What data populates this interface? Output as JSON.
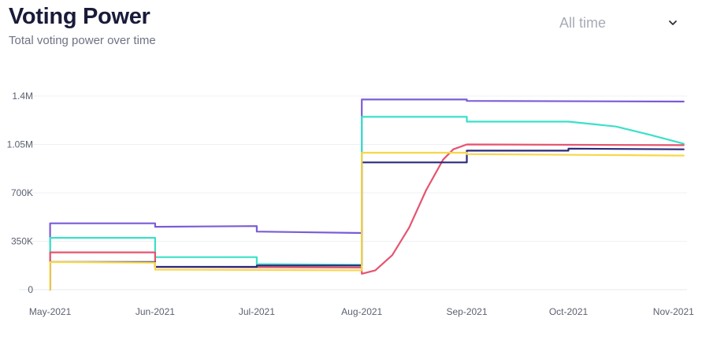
{
  "header": {
    "title": "Voting Power",
    "subtitle": "Total voting power over time"
  },
  "range_selector": {
    "selected": "All time",
    "icon": "chevron-down-icon"
  },
  "chart_data": {
    "type": "line",
    "title": "Voting Power",
    "subtitle": "Total voting power over time",
    "xlabel": "",
    "ylabel": "",
    "x_axis": "date",
    "x_ticks": [
      {
        "date": "2021-05-01",
        "label": "May-2021"
      },
      {
        "date": "2021-06-01",
        "label": "Jun-2021"
      },
      {
        "date": "2021-07-01",
        "label": "Jul-2021"
      },
      {
        "date": "2021-08-01",
        "label": "Aug-2021"
      },
      {
        "date": "2021-09-01",
        "label": "Sep-2021"
      },
      {
        "date": "2021-10-01",
        "label": "Oct-2021"
      },
      {
        "date": "2021-11-01",
        "label": "Nov-2021"
      }
    ],
    "xlim": [
      "2021-04-29",
      "2021-11-05"
    ],
    "y_ticks": [
      {
        "value": 0,
        "label": "0"
      },
      {
        "value": 350000,
        "label": "350K"
      },
      {
        "value": 700000,
        "label": "700K"
      },
      {
        "value": 1050000,
        "label": "1.05M"
      },
      {
        "value": 1400000,
        "label": "1.4M"
      }
    ],
    "ylim": [
      0,
      1400000
    ],
    "grid": "horizontal",
    "legend": "none",
    "series": [
      {
        "color": "#7a5cd6",
        "points": [
          [
            "2021-05-01",
            0
          ],
          [
            "2021-05-01",
            480000
          ],
          [
            "2021-06-01",
            480000
          ],
          [
            "2021-06-01",
            455000
          ],
          [
            "2021-07-01",
            460000
          ],
          [
            "2021-07-01",
            420000
          ],
          [
            "2021-08-01",
            410000
          ],
          [
            "2021-08-01",
            1375000
          ],
          [
            "2021-09-01",
            1375000
          ],
          [
            "2021-09-01",
            1365000
          ],
          [
            "2021-11-04",
            1360000
          ]
        ]
      },
      {
        "color": "#3be0c8",
        "points": [
          [
            "2021-05-01",
            0
          ],
          [
            "2021-05-01",
            375000
          ],
          [
            "2021-06-01",
            375000
          ],
          [
            "2021-06-01",
            235000
          ],
          [
            "2021-07-01",
            235000
          ],
          [
            "2021-07-01",
            185000
          ],
          [
            "2021-08-01",
            180000
          ],
          [
            "2021-08-01",
            1250000
          ],
          [
            "2021-09-01",
            1250000
          ],
          [
            "2021-09-01",
            1215000
          ],
          [
            "2021-10-01",
            1215000
          ],
          [
            "2021-10-15",
            1180000
          ],
          [
            "2021-10-25",
            1120000
          ],
          [
            "2021-11-04",
            1055000
          ]
        ]
      },
      {
        "color": "#e5546e",
        "points": [
          [
            "2021-05-01",
            0
          ],
          [
            "2021-05-01",
            270000
          ],
          [
            "2021-06-01",
            270000
          ],
          [
            "2021-06-01",
            165000
          ],
          [
            "2021-08-01",
            160000
          ],
          [
            "2021-08-01",
            115000
          ],
          [
            "2021-08-05",
            140000
          ],
          [
            "2021-08-10",
            250000
          ],
          [
            "2021-08-15",
            450000
          ],
          [
            "2021-08-20",
            720000
          ],
          [
            "2021-08-25",
            940000
          ],
          [
            "2021-08-28",
            1015000
          ],
          [
            "2021-09-01",
            1050000
          ],
          [
            "2021-11-04",
            1045000
          ]
        ]
      },
      {
        "color": "#2b2a7a",
        "points": [
          [
            "2021-05-01",
            0
          ],
          [
            "2021-05-01",
            200000
          ],
          [
            "2021-06-01",
            200000
          ],
          [
            "2021-06-01",
            165000
          ],
          [
            "2021-07-01",
            165000
          ],
          [
            "2021-07-01",
            175000
          ],
          [
            "2021-08-01",
            175000
          ],
          [
            "2021-08-01",
            920000
          ],
          [
            "2021-09-01",
            920000
          ],
          [
            "2021-09-01",
            1005000
          ],
          [
            "2021-10-01",
            1005000
          ],
          [
            "2021-10-01",
            1020000
          ],
          [
            "2021-11-04",
            1015000
          ]
        ]
      },
      {
        "color": "#f7d74a",
        "points": [
          [
            "2021-05-01",
            0
          ],
          [
            "2021-05-01",
            200000
          ],
          [
            "2021-06-01",
            195000
          ],
          [
            "2021-06-01",
            145000
          ],
          [
            "2021-08-01",
            140000
          ],
          [
            "2021-08-01",
            990000
          ],
          [
            "2021-09-01",
            990000
          ],
          [
            "2021-09-01",
            980000
          ],
          [
            "2021-11-04",
            970000
          ]
        ]
      }
    ]
  }
}
